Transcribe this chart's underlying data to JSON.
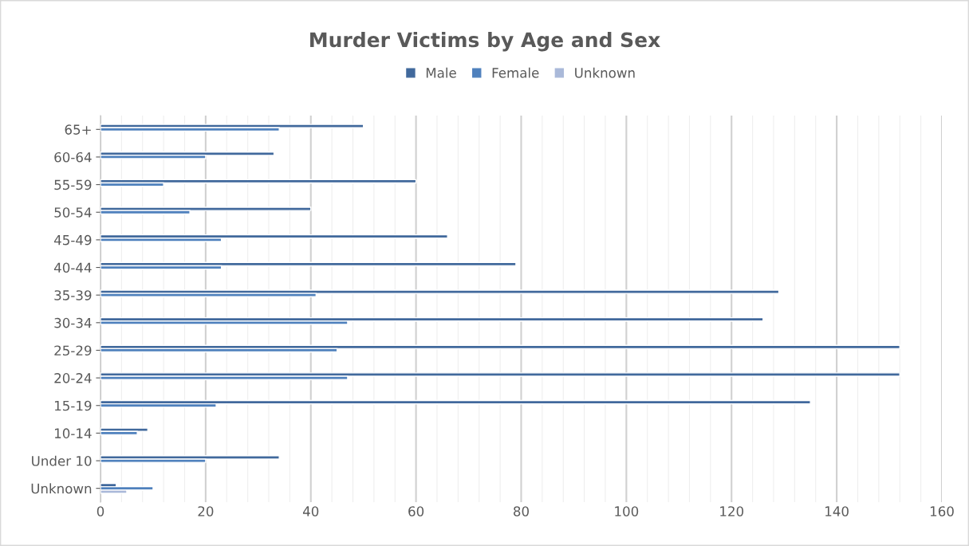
{
  "chart_data": {
    "type": "bar",
    "orientation": "horizontal",
    "title": "Murder Victims by Age and Sex",
    "categories": [
      "65+",
      "60-64",
      "55-59",
      "50-54",
      "45-49",
      "40-44",
      "35-39",
      "30-34",
      "25-29",
      "20-24",
      "15-19",
      "10-14",
      "Under 10",
      "Unknown"
    ],
    "series": [
      {
        "name": "Male",
        "color": "#41699c",
        "values": [
          50,
          33,
          60,
          40,
          66,
          79,
          129,
          126,
          152,
          152,
          135,
          9,
          34,
          3
        ]
      },
      {
        "name": "Female",
        "color": "#4f81bd",
        "values": [
          34,
          20,
          12,
          17,
          23,
          23,
          41,
          47,
          45,
          47,
          22,
          7,
          20,
          10
        ]
      },
      {
        "name": "Unknown",
        "color": "#aab9d9",
        "values": [
          null,
          null,
          null,
          null,
          null,
          null,
          null,
          null,
          null,
          null,
          null,
          null,
          null,
          5
        ]
      }
    ],
    "xlim": [
      0,
      160
    ],
    "xticks": [
      0,
      {
        "value": 4,
        "label": null
      },
      {
        "value": 8,
        "label": null
      },
      {
        "value": 12,
        "label": null
      },
      {
        "value": 16,
        "label": null
      },
      20,
      {
        "value": 24,
        "label": null
      },
      {
        "value": 28,
        "label": null
      },
      {
        "value": 32,
        "label": null
      },
      {
        "value": 36,
        "label": null
      },
      40,
      {
        "value": 44,
        "label": null
      },
      {
        "value": 48,
        "label": null
      },
      {
        "value": 52,
        "label": null
      },
      {
        "value": 56,
        "label": null
      },
      60,
      {
        "value": 64,
        "label": null
      },
      {
        "value": 68,
        "label": null
      },
      {
        "value": 72,
        "label": null
      },
      {
        "value": 76,
        "label": null
      },
      80,
      {
        "value": 84,
        "label": null
      },
      {
        "value": 88,
        "label": null
      },
      {
        "value": 92,
        "label": null
      },
      {
        "value": 96,
        "label": null
      },
      100,
      {
        "value": 104,
        "label": null
      },
      {
        "value": 108,
        "label": null
      },
      {
        "value": 112,
        "label": null
      },
      {
        "value": 116,
        "label": null
      },
      120,
      {
        "value": 124,
        "label": null
      },
      {
        "value": 128,
        "label": null
      },
      {
        "value": 132,
        "label": null
      },
      {
        "value": 136,
        "label": null
      },
      140,
      {
        "value": 144,
        "label": null
      },
      {
        "value": 148,
        "label": null
      },
      {
        "value": 152,
        "label": null
      },
      {
        "value": 156,
        "label": null
      },
      160
    ],
    "grid": "x",
    "legend": "top"
  }
}
